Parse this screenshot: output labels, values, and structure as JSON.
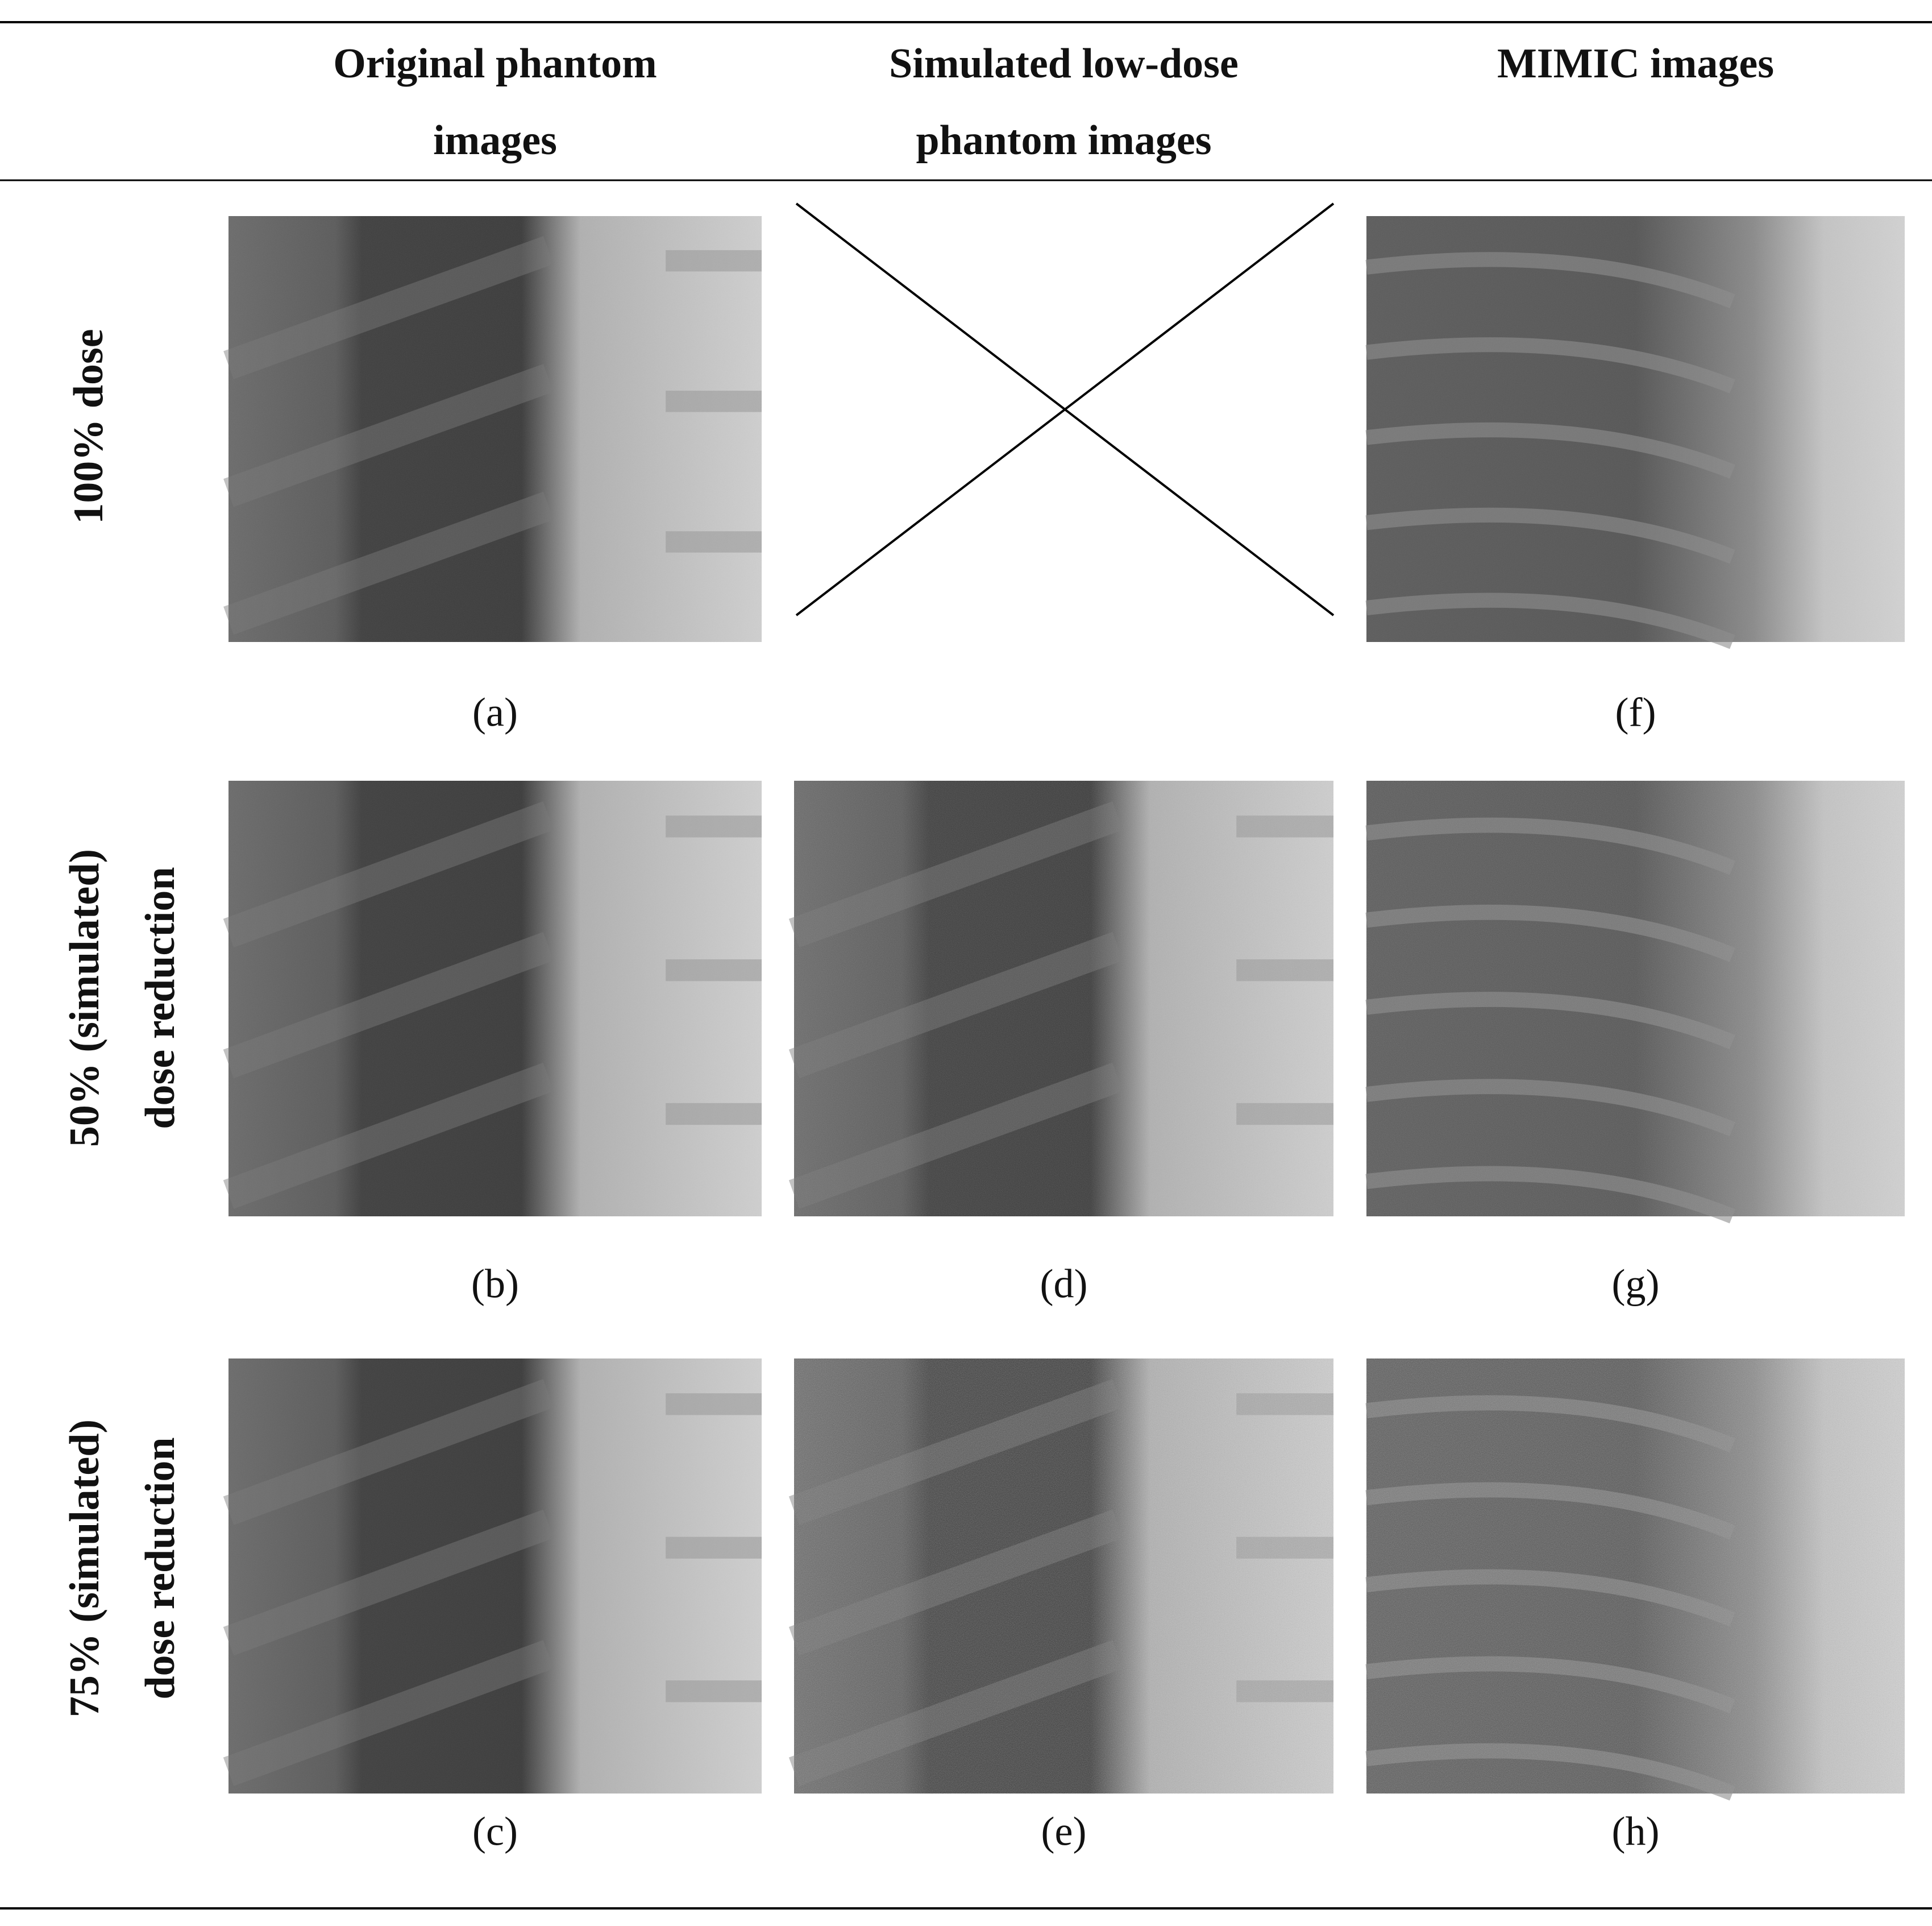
{
  "header": {
    "columns": [
      [
        "Original phantom",
        "images"
      ],
      [
        "Simulated low-dose",
        "phantom images"
      ],
      [
        "MIMIC images"
      ]
    ]
  },
  "rows": [
    {
      "label": [
        "100% dose"
      ],
      "panels": [
        {
          "caption": "(a)"
        },
        {
          "caption": "(f)"
        }
      ]
    },
    {
      "label": [
        "50% (simulated)",
        "dose reduction"
      ],
      "panels": [
        {
          "caption": "(b)"
        },
        {
          "caption": "(d)"
        },
        {
          "caption": "(g)"
        }
      ]
    },
    {
      "label": [
        "75% (simulated)",
        "dose reduction"
      ],
      "panels": [
        {
          "caption": "(c)"
        },
        {
          "caption": "(e)"
        },
        {
          "caption": "(h)"
        }
      ]
    }
  ]
}
